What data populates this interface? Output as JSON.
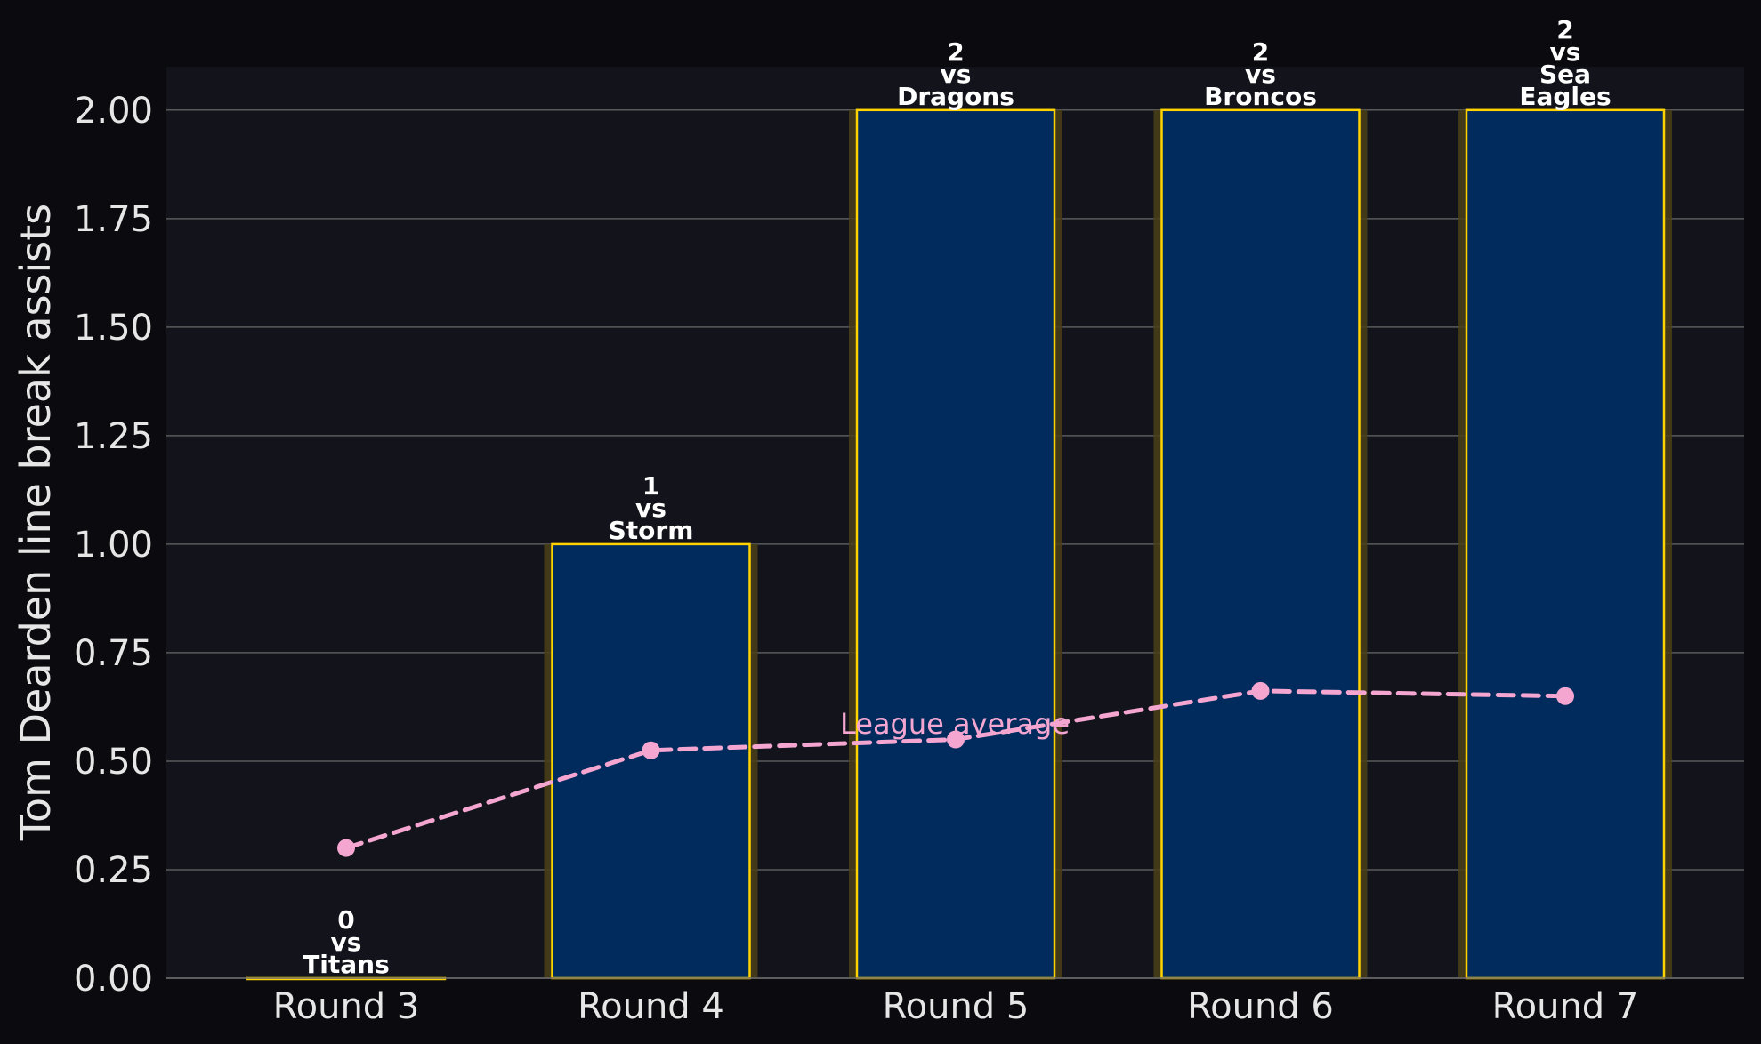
{
  "chart_data": {
    "type": "bar",
    "categories": [
      "Round 3",
      "Round 4",
      "Round 5",
      "Round 6",
      "Round 7"
    ],
    "values": [
      0,
      1,
      2,
      2,
      2
    ],
    "bar_labels": [
      [
        "0",
        "vs",
        "Titans"
      ],
      [
        "1",
        "vs",
        "Storm"
      ],
      [
        "2",
        "vs",
        "Dragons"
      ],
      [
        "2",
        "vs",
        "Broncos"
      ],
      [
        "2",
        "vs",
        "Sea",
        "Eagles"
      ]
    ],
    "series": [
      {
        "name": "League average",
        "type": "line",
        "values": [
          0.3,
          0.525,
          0.55,
          0.662,
          0.65
        ]
      }
    ],
    "ylabel": "Tom Dearden line break assists",
    "xlabel": "",
    "ylim": [
      0,
      2.1
    ],
    "yticks": [
      "0.00",
      "0.25",
      "0.50",
      "0.75",
      "1.00",
      "1.25",
      "1.50",
      "1.75",
      "2.00"
    ],
    "grid": "horizontal",
    "colors": {
      "page_background": "#0b0b0f",
      "plot_background": "#13141b",
      "bar_fill": "#002b5c",
      "bar_edge": "#ffd200",
      "bar_glow": "#4a4017",
      "average_line": "#f4a6d0",
      "grid": "#5a5a5a",
      "text": "#e6e6e6"
    }
  }
}
